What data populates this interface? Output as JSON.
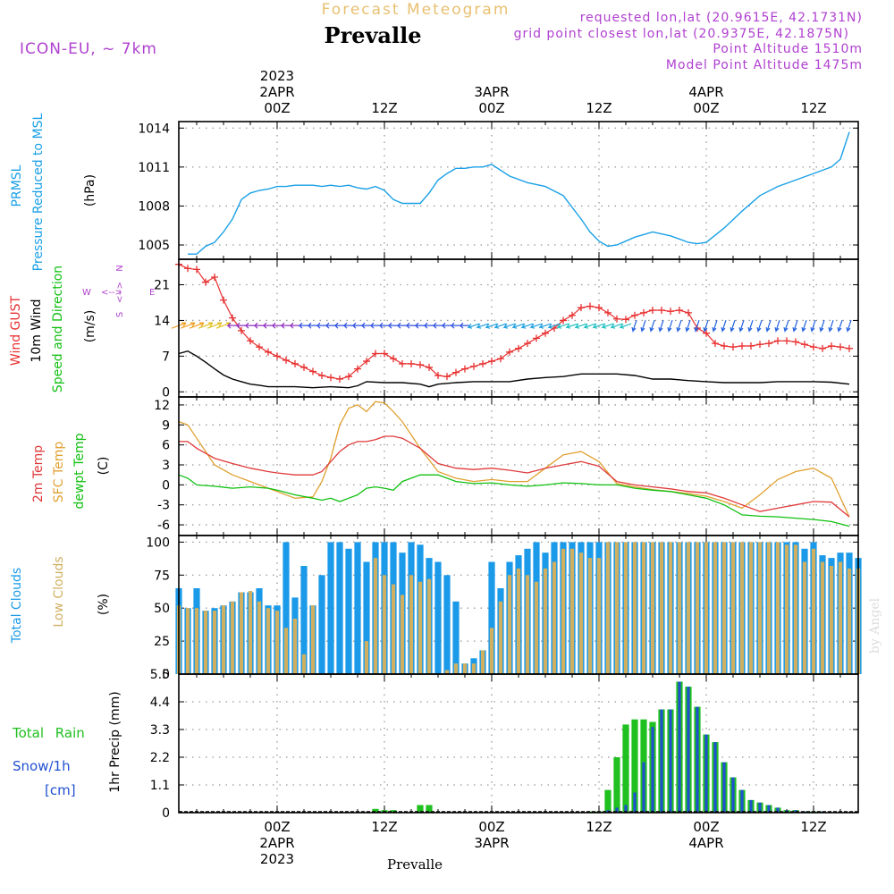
{
  "header": {
    "top_title": "Forecast Meteogram",
    "location": "Prevalle",
    "model": "ICON-EU, ~ 7km",
    "requested": "requested lon,lat (20.9615E, 42.1731N)",
    "grid_point": "grid point closest lon,lat (20.9375E, 42.1875N)",
    "point_altitude": "Point Altitude 1510m",
    "model_altitude": "Model Point Altitude 1475m",
    "footer_location": "Prevalle",
    "watermark": "by Angel"
  },
  "time_axis": {
    "top_labels": [
      {
        "h": 0,
        "lines": [
          "2023",
          "2APR",
          "00Z"
        ]
      },
      {
        "h": 12,
        "lines": [
          "12Z"
        ]
      },
      {
        "h": 24,
        "lines": [
          "3APR",
          "00Z"
        ]
      },
      {
        "h": 36,
        "lines": [
          "12Z"
        ]
      },
      {
        "h": 48,
        "lines": [
          "4APR",
          "00Z"
        ]
      },
      {
        "h": 60,
        "lines": [
          "12Z"
        ]
      }
    ],
    "bottom_labels": [
      {
        "h": 0,
        "lines": [
          "00Z",
          "2APR",
          "2023"
        ]
      },
      {
        "h": 12,
        "lines": [
          "12Z"
        ]
      },
      {
        "h": 24,
        "lines": [
          "00Z",
          "3APR"
        ]
      },
      {
        "h": 36,
        "lines": [
          "12Z"
        ]
      },
      {
        "h": 48,
        "lines": [
          "00Z",
          "4APR"
        ]
      },
      {
        "h": 60,
        "lines": [
          "12Z"
        ]
      }
    ],
    "range_hours": [
      -11,
      65
    ]
  },
  "panels": {
    "pressure": {
      "labels": [
        "PRMSL",
        "Pressure Reduced to MSL",
        "(hPa)"
      ]
    },
    "wind": {
      "labels": [
        "Wind GUST",
        "10m Wind",
        "Speed and Direction",
        "(m/s)"
      ],
      "compass": [
        "N",
        "S",
        "W",
        "E"
      ]
    },
    "temp": {
      "labels": [
        "2m Temp",
        "SFC Temp",
        "dewpt Temp",
        "(C)"
      ]
    },
    "clouds": {
      "labels": [
        "Total Clouds",
        "Low Clouds",
        "(%)"
      ]
    },
    "precip": {
      "labels": [
        "1hr Precip (mm)",
        "Total Rain",
        "Snow/1h",
        "[cm]"
      ]
    }
  },
  "colors": {
    "pressure": "#1aa0e6",
    "gust": "#e83030",
    "wind": "#000000",
    "temp2m": "#e03a3a",
    "sfc": "#e0a030",
    "dewpt": "#10c010",
    "total_clouds": "#1a9ae8",
    "low_clouds": "#d0b060",
    "rain": "#20c020",
    "snow": "#2050d0",
    "header_purple": "#b040d0",
    "top_title": "#e8c070"
  },
  "chart_data": [
    {
      "type": "line",
      "name": "pressure",
      "ylabel": "Pressure Reduced to MSL (hPa)",
      "yticks": [
        1005,
        1008,
        1011,
        1014
      ],
      "ylim": [
        1003.9,
        1014.5
      ],
      "x": [
        -10,
        -9,
        -8,
        -7,
        -6,
        -5,
        -4,
        -3,
        -2,
        -1,
        0,
        1,
        2,
        3,
        4,
        5,
        6,
        7,
        8,
        9,
        10,
        11,
        12,
        13,
        14,
        15,
        16,
        17,
        18,
        19,
        20,
        21,
        22,
        23,
        24,
        26,
        28,
        30,
        32,
        34,
        35,
        36,
        37,
        38,
        39,
        40,
        42,
        44,
        46,
        47,
        48,
        50,
        52,
        54,
        56,
        58,
        60,
        62,
        63,
        64
      ],
      "values": [
        1004.3,
        1004.3,
        1004.9,
        1005.2,
        1006.0,
        1007.0,
        1008.5,
        1009.0,
        1009.2,
        1009.3,
        1009.5,
        1009.5,
        1009.6,
        1009.6,
        1009.6,
        1009.5,
        1009.6,
        1009.5,
        1009.6,
        1009.4,
        1009.3,
        1009.5,
        1009.2,
        1008.5,
        1008.2,
        1008.2,
        1008.2,
        1009.0,
        1010.0,
        1010.5,
        1010.9,
        1010.9,
        1011.0,
        1011.0,
        1011.2,
        1010.3,
        1009.8,
        1009.5,
        1008.8,
        1007.0,
        1006.0,
        1005.3,
        1004.9,
        1005.0,
        1005.3,
        1005.6,
        1006.0,
        1005.7,
        1005.2,
        1005.1,
        1005.2,
        1006.3,
        1007.6,
        1008.8,
        1009.5,
        1010.0,
        1010.5,
        1011.0,
        1011.6,
        1013.7
      ]
    },
    {
      "type": "line",
      "name": "wind",
      "ylabel": "(m/s)",
      "yticks": [
        0,
        7,
        14,
        21
      ],
      "ylim": [
        -1,
        26
      ],
      "gust_x": [
        -11,
        -10,
        -9,
        -8,
        -7,
        -6,
        -5,
        -4,
        -3,
        -2,
        -1,
        0,
        1,
        2,
        3,
        4,
        5,
        6,
        7,
        8,
        9,
        10,
        11,
        12,
        13,
        14,
        15,
        16,
        17,
        18,
        19,
        20,
        21,
        22,
        23,
        24,
        25,
        26,
        27,
        28,
        29,
        30,
        31,
        32,
        33,
        34,
        35,
        36,
        37,
        38,
        39,
        40,
        41,
        42,
        43,
        44,
        45,
        46,
        47,
        48,
        49,
        50,
        51,
        52,
        53,
        54,
        55,
        56,
        57,
        58,
        59,
        60,
        61,
        62,
        63,
        64
      ],
      "gust": [
        25.0,
        24.2,
        24.0,
        21.5,
        22.5,
        18.0,
        14.5,
        12.0,
        10.0,
        8.8,
        7.8,
        7.0,
        6.2,
        5.5,
        4.8,
        4.0,
        3.2,
        2.8,
        2.5,
        3.0,
        4.5,
        6.0,
        7.5,
        7.5,
        6.5,
        5.5,
        5.5,
        5.3,
        4.8,
        3.2,
        3.0,
        3.8,
        4.5,
        5.0,
        5.5,
        6.0,
        6.5,
        7.8,
        8.5,
        9.5,
        10.5,
        11.5,
        12.5,
        14.0,
        15.0,
        16.5,
        16.8,
        16.5,
        15.5,
        14.3,
        14.2,
        15.0,
        15.5,
        16.0,
        16.0,
        15.8,
        16.0,
        15.5,
        12.5,
        11.5,
        9.5,
        9.0,
        8.8,
        9.0,
        9.0,
        9.3,
        9.5,
        10.0,
        10.0,
        9.8,
        9.3,
        8.8,
        8.5,
        9.0,
        8.8,
        8.5
      ],
      "wind_x": [
        -11,
        -10,
        -9,
        -8,
        -7,
        -6,
        -5,
        -4,
        -3,
        -2,
        -1,
        0,
        2,
        4,
        6,
        8,
        9,
        10,
        12,
        14,
        16,
        17,
        18,
        20,
        22,
        24,
        26,
        28,
        30,
        32,
        34,
        36,
        38,
        40,
        42,
        44,
        46,
        48,
        50,
        52,
        54,
        56,
        58,
        60,
        62,
        64
      ],
      "wind": [
        7.5,
        8.0,
        7.0,
        5.8,
        4.5,
        3.3,
        2.5,
        2.0,
        1.5,
        1.3,
        1.0,
        1.0,
        1.0,
        0.8,
        1.0,
        0.8,
        1.2,
        2.0,
        1.8,
        1.8,
        1.5,
        1.0,
        1.5,
        1.8,
        2.0,
        2.0,
        2.0,
        2.5,
        2.8,
        3.0,
        3.5,
        3.5,
        3.5,
        3.2,
        2.5,
        2.5,
        2.2,
        2.0,
        1.8,
        1.8,
        1.8,
        2.0,
        2.0,
        2.0,
        1.9,
        1.5
      ]
    },
    {
      "type": "line",
      "name": "temperature",
      "ylabel": "(C)",
      "yticks": [
        -6,
        -3,
        0,
        3,
        6,
        9,
        12
      ],
      "ylim": [
        -7.6,
        13.2
      ],
      "x": [
        -11,
        -10,
        -9,
        -7,
        -5,
        -3,
        -1,
        0,
        2,
        4,
        5,
        6,
        7,
        8,
        9,
        10,
        11,
        12,
        13,
        14,
        16,
        18,
        20,
        22,
        24,
        26,
        28,
        30,
        32,
        34,
        36,
        38,
        40,
        42,
        44,
        46,
        48,
        50,
        52,
        54,
        56,
        58,
        60,
        62,
        64
      ],
      "t2m": [
        6.5,
        6.5,
        5.5,
        4.0,
        3.2,
        2.5,
        2.0,
        1.8,
        1.5,
        1.5,
        2.0,
        3.5,
        5.0,
        6.0,
        6.5,
        6.5,
        6.8,
        7.3,
        7.3,
        7.0,
        5.5,
        3.2,
        2.5,
        2.3,
        2.5,
        2.2,
        1.8,
        2.5,
        3.0,
        3.5,
        2.8,
        0.5,
        0.0,
        -0.3,
        -0.6,
        -1.0,
        -1.2,
        -2.0,
        -3.0,
        -4.0,
        -3.5,
        -3.0,
        -2.5,
        -2.6,
        -4.8
      ],
      "sfc": [
        9.5,
        9.0,
        7.0,
        3.0,
        1.5,
        0.5,
        -0.5,
        -1.0,
        -2.0,
        -1.8,
        0.5,
        4.0,
        9.0,
        11.5,
        12.0,
        11.0,
        12.5,
        12.3,
        11.0,
        9.5,
        5.5,
        2.0,
        1.0,
        0.5,
        0.8,
        0.5,
        0.5,
        2.5,
        4.5,
        5.0,
        3.5,
        0.2,
        -0.3,
        -0.7,
        -1.0,
        -1.3,
        -1.7,
        -2.5,
        -3.5,
        -1.5,
        0.8,
        2.0,
        2.5,
        1.0,
        -4.8
      ],
      "dewpt": [
        1.5,
        1.0,
        0.0,
        -0.2,
        -0.5,
        -0.3,
        -0.5,
        -0.8,
        -1.5,
        -2.0,
        -2.3,
        -2.0,
        -2.5,
        -2.0,
        -1.5,
        -0.5,
        -0.3,
        -0.5,
        -0.8,
        0.5,
        1.5,
        1.5,
        0.5,
        0.2,
        0.3,
        0.0,
        -0.2,
        0.0,
        0.3,
        0.2,
        0.0,
        0.0,
        -0.5,
        -0.8,
        -1.0,
        -1.5,
        -2.0,
        -3.0,
        -4.5,
        -4.7,
        -4.8,
        -5.0,
        -5.2,
        -5.5,
        -6.2
      ]
    },
    {
      "type": "bar",
      "name": "clouds",
      "ylabel": "(%)",
      "yticks": [
        0,
        25,
        50,
        75,
        100
      ],
      "ylim": [
        0,
        105
      ],
      "x_start": -11,
      "total": [
        65,
        50,
        65,
        48,
        50,
        52,
        55,
        62,
        62,
        65,
        52,
        52,
        100,
        58,
        82,
        52,
        75,
        100,
        100,
        95,
        100,
        85,
        100,
        100,
        100,
        92,
        100,
        98,
        88,
        85,
        75,
        55,
        8,
        12,
        18,
        85,
        65,
        85,
        90,
        95,
        100,
        92,
        100,
        100,
        100,
        100,
        100,
        100,
        100,
        100,
        100,
        100,
        100,
        100,
        100,
        100,
        100,
        100,
        100,
        100,
        100,
        100,
        100,
        100,
        100,
        100,
        100,
        100,
        100,
        100,
        95,
        100,
        90,
        88,
        92,
        92,
        88,
        90,
        85
      ],
      "low": [
        52,
        50,
        50,
        48,
        48,
        52,
        55,
        62,
        63,
        55,
        50,
        48,
        35,
        42,
        15,
        52,
        0,
        0,
        0,
        0,
        0,
        25,
        88,
        75,
        68,
        60,
        75,
        70,
        72,
        0,
        3,
        8,
        8,
        8,
        18,
        35,
        55,
        75,
        80,
        75,
        70,
        80,
        85,
        95,
        95,
        92,
        88,
        88,
        100,
        100,
        100,
        100,
        100,
        100,
        100,
        100,
        100,
        100,
        100,
        100,
        100,
        100,
        100,
        100,
        100,
        100,
        100,
        100,
        98,
        98,
        85,
        95,
        85,
        82,
        85,
        80,
        80,
        75,
        78
      ]
    },
    {
      "type": "bar",
      "name": "precip",
      "ylabel": "1hr Precip (mm)",
      "yticks": [
        0,
        1.1,
        2.2,
        3.3,
        4.4,
        5.5
      ],
      "ylim": [
        0,
        5.5
      ],
      "x_start": -11,
      "rain": [
        0,
        0,
        0,
        0,
        0,
        0,
        0,
        0,
        0,
        0,
        0,
        0,
        0,
        0,
        0,
        0,
        0,
        0,
        0,
        0,
        0,
        0,
        0.15,
        0.1,
        0.1,
        0,
        0,
        0.3,
        0.3,
        0,
        0,
        0,
        0,
        0,
        0,
        0,
        0,
        0,
        0,
        0,
        0,
        0,
        0,
        0,
        0,
        0,
        0.05,
        0.05,
        0.9,
        2.2,
        3.5,
        3.7,
        3.7,
        3.6,
        4.1,
        4.1,
        5.2,
        5.0,
        4.2,
        3.1,
        2.8,
        2.0,
        1.4,
        0.9,
        0.5,
        0.4,
        0.3,
        0.2,
        0.1,
        0.1,
        0.05,
        0.05,
        0.05,
        0,
        0,
        0
      ],
      "snow": [
        0,
        0,
        0,
        0,
        0,
        0,
        0,
        0,
        0,
        0,
        0,
        0,
        0,
        0,
        0,
        0,
        0,
        0,
        0,
        0,
        0,
        0,
        0,
        0,
        0,
        0,
        0,
        0,
        0,
        0,
        0,
        0,
        0,
        0,
        0,
        0,
        0,
        0,
        0,
        0,
        0,
        0,
        0,
        0,
        0,
        0,
        0,
        0,
        0.1,
        0.2,
        0.3,
        0.8,
        2.0,
        3.4,
        4.1,
        4.1,
        5.2,
        5.0,
        4.2,
        3.1,
        2.8,
        2.0,
        1.4,
        0.9,
        0.5,
        0.4,
        0.3,
        0.2,
        0.1,
        0.1,
        0.05,
        0.05,
        0.05,
        0,
        0,
        0
      ]
    }
  ]
}
